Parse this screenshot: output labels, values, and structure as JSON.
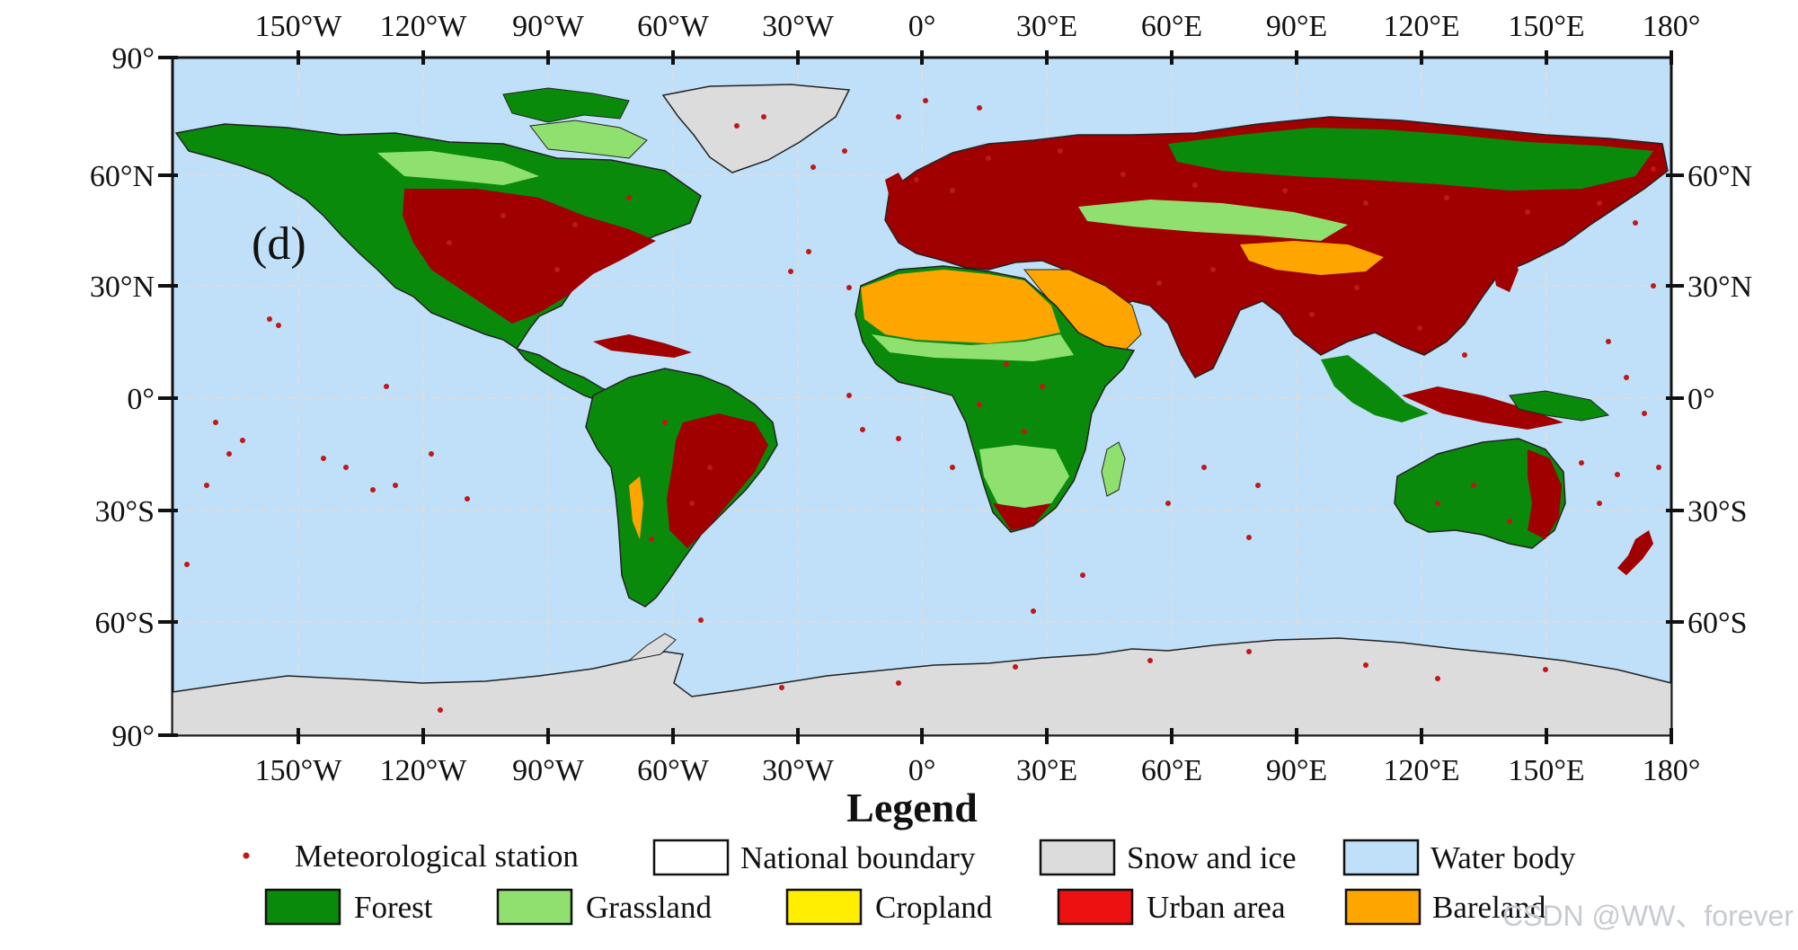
{
  "map": {
    "panel_label": "(d)",
    "lon_labels": [
      "150°W",
      "120°W",
      "90°W",
      "60°W",
      "30°W",
      "0°",
      "30°E",
      "60°E",
      "90°E",
      "120°E",
      "150°E",
      "180°"
    ],
    "lat_labels_left": [
      "90°",
      "60°N",
      "30°N",
      "0°",
      "30°S",
      "60°S",
      "90°"
    ],
    "lat_labels_right": [
      "60°N",
      "30°N",
      "0°",
      "30°S",
      "60°S"
    ],
    "colors": {
      "water": "#bfe0f8",
      "snow_ice": "#dcdcdc",
      "forest": "#0a8a0a",
      "grassland": "#90e070",
      "cropland": "#ffee00",
      "urban": "#a00000",
      "bareland": "#ffa500",
      "station": "#c01818"
    }
  },
  "legend": {
    "title": "Legend",
    "items": [
      {
        "label": "Meteorological station",
        "color": "#c01818",
        "kind": "dot"
      },
      {
        "label": "National boundary",
        "color": "#ffffff",
        "kind": "box"
      },
      {
        "label": "Snow and ice",
        "color": "#dcdcdc",
        "kind": "box"
      },
      {
        "label": "Water body",
        "color": "#bfe0f8",
        "kind": "box"
      },
      {
        "label": "Forest",
        "color": "#0a8a0a",
        "kind": "box"
      },
      {
        "label": "Grassland",
        "color": "#90e070",
        "kind": "box"
      },
      {
        "label": "Cropland",
        "color": "#ffee00",
        "kind": "box"
      },
      {
        "label": "Urban area",
        "color": "#ee1111",
        "kind": "box"
      },
      {
        "label": "Bareland",
        "color": "#ffa500",
        "kind": "box"
      }
    ]
  },
  "watermark": "CSDN @WW、forever"
}
